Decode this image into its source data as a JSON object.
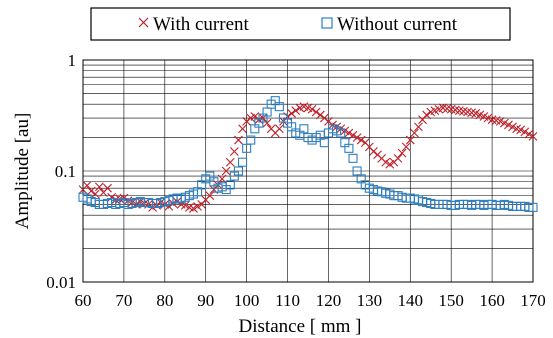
{
  "chart_data": {
    "type": "scatter",
    "xlabel": "Distance [ mm ]",
    "ylabel": "Amplitude [au]",
    "xlim": [
      60,
      170
    ],
    "ylim": [
      0.01,
      1
    ],
    "y_scale": "log",
    "x_ticks": [
      60,
      70,
      80,
      90,
      100,
      110,
      120,
      130,
      140,
      150,
      160,
      170
    ],
    "x_tick_labels": [
      "60",
      "70",
      "80",
      "90",
      "100",
      "110",
      "120",
      "130",
      "140",
      "150",
      "160",
      "170"
    ],
    "y_ticks": [
      0.01,
      0.1,
      1
    ],
    "y_tick_labels": [
      "0.01",
      "0.1",
      "1"
    ],
    "grid": true,
    "legend_position": "top",
    "series": [
      {
        "name": "With current",
        "marker": "x",
        "color": "#C0202A",
        "x": [
          60,
          61,
          62,
          63,
          64,
          65,
          66,
          67,
          68,
          69,
          70,
          71,
          72,
          73,
          74,
          75,
          76,
          77,
          78,
          79,
          80,
          81,
          82,
          83,
          84,
          85,
          86,
          87,
          88,
          89,
          90,
          91,
          92,
          93,
          94,
          95,
          96,
          97,
          98,
          99,
          100,
          101,
          102,
          103,
          104,
          105,
          106,
          107,
          108,
          109,
          110,
          111,
          112,
          113,
          114,
          115,
          116,
          117,
          118,
          119,
          120,
          121,
          122,
          123,
          124,
          125,
          126,
          127,
          128,
          129,
          130,
          131,
          132,
          133,
          134,
          135,
          136,
          137,
          138,
          139,
          140,
          141,
          142,
          143,
          144,
          145,
          146,
          147,
          148,
          149,
          150,
          151,
          152,
          153,
          154,
          155,
          156,
          157,
          158,
          159,
          160,
          161,
          162,
          163,
          164,
          165,
          166,
          167,
          168,
          169,
          170
        ],
        "y": [
          0.068,
          0.074,
          0.066,
          0.062,
          0.072,
          0.064,
          0.07,
          0.058,
          0.055,
          0.056,
          0.057,
          0.054,
          0.052,
          0.05,
          0.053,
          0.051,
          0.05,
          0.047,
          0.049,
          0.052,
          0.05,
          0.048,
          0.051,
          0.053,
          0.05,
          0.049,
          0.047,
          0.046,
          0.048,
          0.05,
          0.055,
          0.06,
          0.068,
          0.075,
          0.085,
          0.1,
          0.12,
          0.15,
          0.19,
          0.24,
          0.28,
          0.3,
          0.31,
          0.29,
          0.3,
          0.27,
          0.24,
          0.22,
          0.24,
          0.28,
          0.31,
          0.33,
          0.35,
          0.37,
          0.38,
          0.37,
          0.36,
          0.34,
          0.32,
          0.3,
          0.28,
          0.26,
          0.25,
          0.24,
          0.23,
          0.22,
          0.21,
          0.2,
          0.19,
          0.18,
          0.165,
          0.15,
          0.14,
          0.13,
          0.12,
          0.115,
          0.12,
          0.13,
          0.145,
          0.165,
          0.19,
          0.22,
          0.25,
          0.29,
          0.32,
          0.34,
          0.35,
          0.36,
          0.37,
          0.365,
          0.36,
          0.355,
          0.35,
          0.345,
          0.34,
          0.335,
          0.33,
          0.32,
          0.31,
          0.3,
          0.29,
          0.285,
          0.28,
          0.27,
          0.26,
          0.25,
          0.24,
          0.235,
          0.225,
          0.215,
          0.205
        ]
      },
      {
        "name": "Without current",
        "marker": "square",
        "color": "#2E7FC0",
        "x": [
          60,
          61,
          62,
          63,
          64,
          65,
          66,
          67,
          68,
          69,
          70,
          71,
          72,
          73,
          74,
          75,
          76,
          77,
          78,
          79,
          80,
          81,
          82,
          83,
          84,
          85,
          86,
          87,
          88,
          89,
          90,
          91,
          92,
          93,
          94,
          95,
          96,
          97,
          98,
          99,
          100,
          101,
          102,
          103,
          104,
          105,
          106,
          107,
          108,
          109,
          110,
          111,
          112,
          113,
          114,
          115,
          116,
          117,
          118,
          119,
          120,
          121,
          122,
          123,
          124,
          125,
          126,
          127,
          128,
          129,
          130,
          131,
          132,
          133,
          134,
          135,
          136,
          137,
          138,
          139,
          140,
          141,
          142,
          143,
          144,
          145,
          146,
          147,
          148,
          149,
          150,
          151,
          152,
          153,
          154,
          155,
          156,
          157,
          158,
          159,
          160,
          161,
          162,
          163,
          164,
          165,
          166,
          167,
          168,
          169,
          170
        ],
        "y": [
          0.058,
          0.056,
          0.053,
          0.052,
          0.05,
          0.05,
          0.051,
          0.052,
          0.05,
          0.051,
          0.052,
          0.05,
          0.051,
          0.052,
          0.053,
          0.052,
          0.052,
          0.051,
          0.051,
          0.052,
          0.053,
          0.054,
          0.056,
          0.057,
          0.056,
          0.058,
          0.06,
          0.062,
          0.065,
          0.075,
          0.085,
          0.09,
          0.08,
          0.07,
          0.072,
          0.068,
          0.075,
          0.09,
          0.1,
          0.12,
          0.16,
          0.19,
          0.24,
          0.27,
          0.3,
          0.34,
          0.4,
          0.43,
          0.38,
          0.3,
          0.27,
          0.25,
          0.22,
          0.21,
          0.24,
          0.2,
          0.19,
          0.2,
          0.21,
          0.18,
          0.22,
          0.24,
          0.23,
          0.22,
          0.18,
          0.16,
          0.13,
          0.1,
          0.085,
          0.075,
          0.07,
          0.068,
          0.066,
          0.065,
          0.063,
          0.062,
          0.06,
          0.06,
          0.058,
          0.057,
          0.057,
          0.056,
          0.055,
          0.053,
          0.052,
          0.051,
          0.05,
          0.05,
          0.05,
          0.05,
          0.049,
          0.049,
          0.05,
          0.05,
          0.05,
          0.049,
          0.05,
          0.05,
          0.049,
          0.05,
          0.05,
          0.049,
          0.049,
          0.05,
          0.049,
          0.048,
          0.048,
          0.048,
          0.048,
          0.047,
          0.047
        ]
      }
    ]
  }
}
